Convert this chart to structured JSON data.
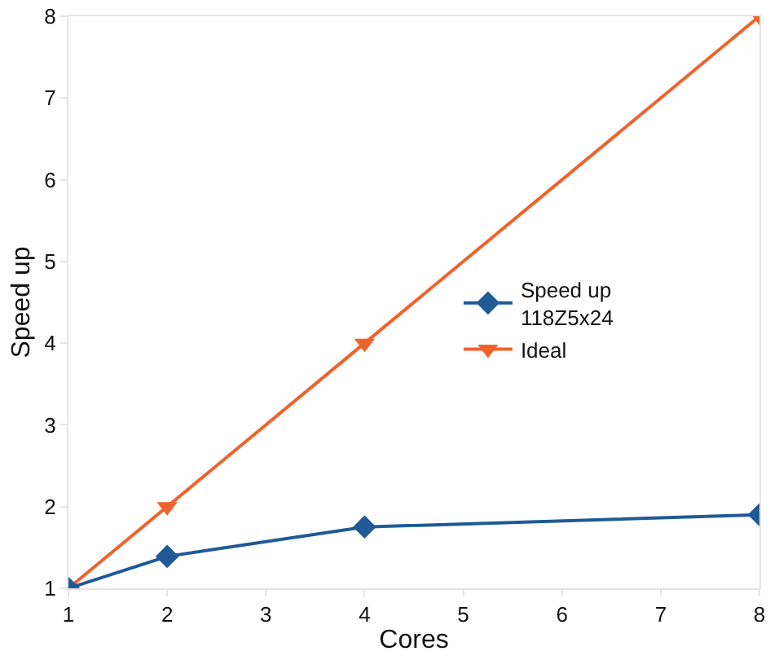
{
  "chart_data": {
    "type": "line",
    "xlabel": "Cores",
    "ylabel": "Speed up",
    "x": [
      1,
      2,
      4,
      8
    ],
    "series": [
      {
        "name": "Speed up\n118Z5x24",
        "color": "#1f5a96",
        "marker": "diamond",
        "values": [
          1,
          1.39,
          1.75,
          1.9
        ]
      },
      {
        "name": "Ideal",
        "color": "#f0622a",
        "marker": "triangle",
        "values": [
          1,
          2,
          4,
          8
        ]
      }
    ],
    "xlim": [
      1,
      8
    ],
    "xticks": [
      1,
      2,
      3,
      4,
      5,
      6,
      7,
      8
    ],
    "ylim": [
      1,
      8
    ],
    "yticks": [
      1,
      2,
      3,
      4,
      5,
      6,
      7,
      8
    ],
    "grid": false,
    "legend": "right"
  }
}
